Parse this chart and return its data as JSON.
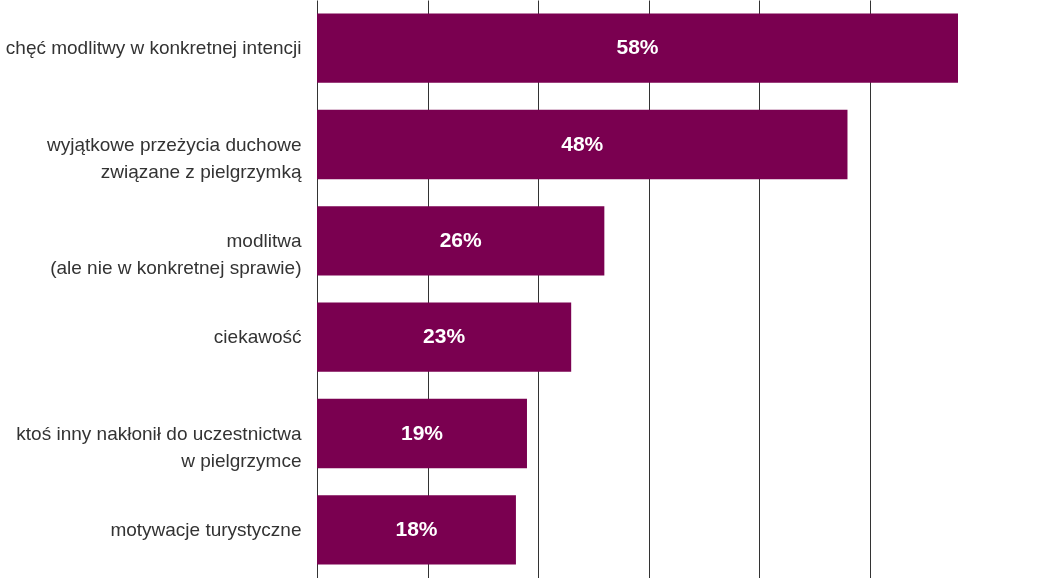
{
  "chart_data": {
    "type": "bar",
    "orientation": "horizontal",
    "categories": [
      "chęć modlitwy w konkretnej intencji",
      "wyjątkowe przeżycia duchowe\nzwiązane z pielgrzymką",
      "modlitwa\n(ale nie w konkretnej sprawie)",
      "ciekawość",
      "ktoś inny nakłonił do uczestnictwa\nw pielgrzymce",
      "motywacje turystyczne"
    ],
    "values": [
      58,
      48,
      26,
      23,
      19,
      18
    ],
    "value_labels": [
      "58%",
      "48%",
      "26%",
      "23%",
      "19%",
      "18%"
    ],
    "color": "#7a0050",
    "xlim": [
      0,
      58
    ],
    "xticks": [
      {
        "value": 0,
        "label": null
      },
      {
        "value": 10,
        "label": null
      },
      {
        "value": 20,
        "label": null
      },
      {
        "value": 30,
        "label": null
      },
      {
        "value": 40,
        "label": null
      },
      {
        "value": 50,
        "label": null
      }
    ],
    "grid": "x",
    "tick_labels": "y"
  }
}
